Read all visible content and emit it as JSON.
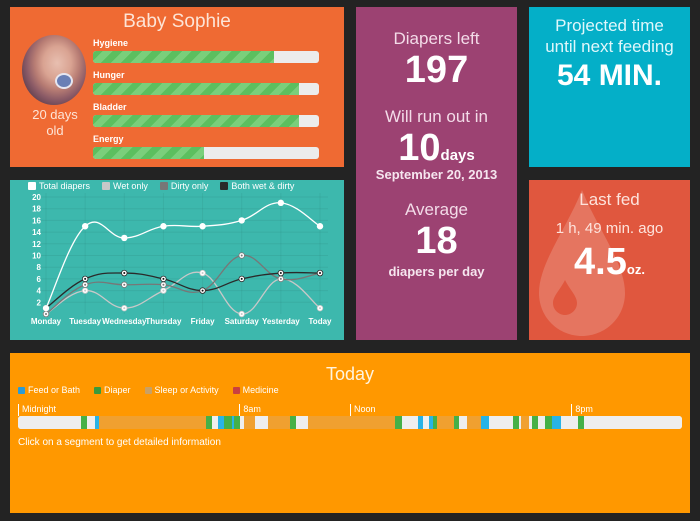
{
  "baby": {
    "name": "Baby Sophie",
    "age_line1": "20 days",
    "age_line2": "old",
    "stats": [
      {
        "label": "Hygiene",
        "percent": 80
      },
      {
        "label": "Hunger",
        "percent": 91
      },
      {
        "label": "Bladder",
        "percent": 91
      },
      {
        "label": "Energy",
        "percent": 49
      }
    ],
    "bar_colors": {
      "fill": "#5cbf5f",
      "stripe": "#7acf7b",
      "track": "#ececec"
    }
  },
  "diapers": {
    "left_label": "Diapers left",
    "left_value": "197",
    "runout_label": "Will run out in",
    "runout_value": "10",
    "runout_unit": "days",
    "runout_date": "September 20, 2013",
    "average_label": "Average",
    "average_value": "18",
    "average_unit": "diapers per day"
  },
  "feeding": {
    "title_line1": "Projected time",
    "title_line2": "until next feeding",
    "value": "54 MIN."
  },
  "last_fed": {
    "title": "Last fed",
    "ago": "1 h, 49 min. ago",
    "amount": "4.5",
    "unit": "oz."
  },
  "chart_data": {
    "type": "line",
    "title": "",
    "xlabel": "",
    "ylabel": "",
    "categories": [
      "Monday",
      "Tuesday",
      "Wednesday",
      "Thursday",
      "Friday",
      "Saturday",
      "Yesterday",
      "Today"
    ],
    "y_ticks": [
      2,
      4,
      6,
      8,
      10,
      12,
      14,
      16,
      18,
      20
    ],
    "ylim": [
      0,
      20
    ],
    "grid": true,
    "legend_position": "top",
    "series": [
      {
        "name": "Total diapers",
        "color": "#ffffff",
        "values": [
          1,
          15,
          13,
          15,
          15,
          16,
          19,
          15
        ]
      },
      {
        "name": "Wet only",
        "color": "#c8c8c8",
        "values": [
          0,
          4,
          1,
          4,
          7,
          0,
          6,
          1
        ]
      },
      {
        "name": "Dirty only",
        "color": "#777777",
        "values": [
          0,
          5,
          5,
          5,
          4,
          10,
          6,
          7
        ]
      },
      {
        "name": "Both wet & dirty",
        "color": "#2a2a2a",
        "values": [
          1,
          6,
          7,
          6,
          4,
          6,
          7,
          7
        ]
      }
    ]
  },
  "today": {
    "title": "Today",
    "legend": [
      {
        "label": "Feed or Bath",
        "color": "#2a9bd6"
      },
      {
        "label": "Diaper",
        "color": "#3a9a3c"
      },
      {
        "label": "Sleep or Activity",
        "color": "#c9a064"
      },
      {
        "label": "Medicine",
        "color": "#c94040"
      }
    ],
    "markers": [
      {
        "label": "Midnight",
        "hour": 0
      },
      {
        "label": "8am",
        "hour": 8
      },
      {
        "label": "Noon",
        "hour": 12
      },
      {
        "label": "8pm",
        "hour": 20
      }
    ],
    "hint": "Click on a segment to get detailed information",
    "segment_colors": {
      "none": "#eeeeee",
      "feed": "#29b3e6",
      "diaper": "#45b048",
      "sleep": "#f0a030"
    },
    "segments": [
      {
        "type": "none",
        "start": 0.0,
        "end": 2.27
      },
      {
        "type": "diaper",
        "start": 2.27,
        "end": 2.49
      },
      {
        "type": "none",
        "start": 2.49,
        "end": 2.78
      },
      {
        "type": "feed",
        "start": 2.78,
        "end": 2.92
      },
      {
        "type": "sleep",
        "start": 2.92,
        "end": 6.79
      },
      {
        "type": "diaper",
        "start": 6.79,
        "end": 7.01
      },
      {
        "type": "none",
        "start": 7.01,
        "end": 7.22
      },
      {
        "type": "feed",
        "start": 7.22,
        "end": 7.44
      },
      {
        "type": "diaper",
        "start": 7.44,
        "end": 7.73
      },
      {
        "type": "feed",
        "start": 7.73,
        "end": 7.81
      },
      {
        "type": "diaper",
        "start": 7.81,
        "end": 8.02
      },
      {
        "type": "none",
        "start": 8.02,
        "end": 8.17
      },
      {
        "type": "sleep",
        "start": 8.17,
        "end": 8.57
      },
      {
        "type": "none",
        "start": 8.57,
        "end": 9.04
      },
      {
        "type": "sleep",
        "start": 9.04,
        "end": 9.83
      },
      {
        "type": "diaper",
        "start": 9.83,
        "end": 10.05
      },
      {
        "type": "none",
        "start": 10.05,
        "end": 10.48
      },
      {
        "type": "sleep",
        "start": 10.48,
        "end": 13.62
      },
      {
        "type": "diaper",
        "start": 13.62,
        "end": 13.87
      },
      {
        "type": "none",
        "start": 13.87,
        "end": 14.45
      },
      {
        "type": "feed",
        "start": 14.45,
        "end": 14.63
      },
      {
        "type": "none",
        "start": 14.63,
        "end": 14.85
      },
      {
        "type": "feed",
        "start": 14.85,
        "end": 14.99
      },
      {
        "type": "diaper",
        "start": 14.99,
        "end": 15.14
      },
      {
        "type": "sleep",
        "start": 15.14,
        "end": 15.75
      },
      {
        "type": "diaper",
        "start": 15.75,
        "end": 15.96
      },
      {
        "type": "none",
        "start": 15.96,
        "end": 16.22
      },
      {
        "type": "sleep",
        "start": 16.22,
        "end": 16.76
      },
      {
        "type": "feed",
        "start": 16.76,
        "end": 17.05
      },
      {
        "type": "none",
        "start": 17.05,
        "end": 17.91
      },
      {
        "type": "diaper",
        "start": 17.91,
        "end": 18.13
      },
      {
        "type": "none",
        "start": 18.13,
        "end": 18.2
      },
      {
        "type": "sleep",
        "start": 18.2,
        "end": 18.49
      },
      {
        "type": "none",
        "start": 18.49,
        "end": 18.6
      },
      {
        "type": "diaper",
        "start": 18.6,
        "end": 18.81
      },
      {
        "type": "none",
        "start": 18.81,
        "end": 19.06
      },
      {
        "type": "diaper",
        "start": 19.06,
        "end": 19.32
      },
      {
        "type": "feed",
        "start": 19.32,
        "end": 19.64
      },
      {
        "type": "none",
        "start": 19.64,
        "end": 20.25
      },
      {
        "type": "diaper",
        "start": 20.25,
        "end": 20.47
      },
      {
        "type": "none",
        "start": 20.47,
        "end": 24.0
      }
    ]
  }
}
